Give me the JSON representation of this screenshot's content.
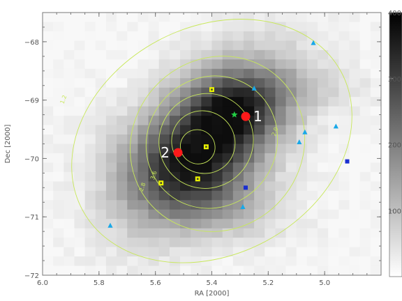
{
  "chart_data": {
    "type": "heatmap",
    "title": "",
    "xlabel": "RA [2000]",
    "ylabel": "Dec [2000]",
    "xlim": [
      6.0,
      4.8
    ],
    "ylim": [
      -72.0,
      -67.5
    ],
    "x_ticks": [
      {
        "value": 6.0,
        "label": "6.0"
      },
      {
        "value": 5.8,
        "label": "5.8"
      },
      {
        "value": 5.6,
        "label": "5.6"
      },
      {
        "value": 5.4,
        "label": "5.4"
      },
      {
        "value": 5.2,
        "label": "5.2"
      },
      {
        "value": 5.0,
        "label": "5.0"
      }
    ],
    "y_ticks": [
      {
        "value": -68,
        "label": "−68"
      },
      {
        "value": -69,
        "label": "−69"
      },
      {
        "value": -70,
        "label": "−70"
      },
      {
        "value": -71,
        "label": "−71"
      },
      {
        "value": -72,
        "label": "−72"
      }
    ],
    "colorbar": {
      "min": 0,
      "max": 400,
      "ticks": [
        {
          "value": 100,
          "label": "100"
        },
        {
          "value": 200,
          "label": "200"
        },
        {
          "value": 300,
          "label": "300"
        },
        {
          "value": 400,
          "label": "400"
        }
      ],
      "colors": {
        "low": "#ffffff",
        "high": "#000000"
      }
    },
    "heatmap_grid": {
      "rows": 28,
      "cols": 32
    },
    "contours": [
      {
        "level": 1.2,
        "label": "1.2",
        "cx": 5.4,
        "cy": -69.7,
        "rx": 0.52,
        "ry": 1.95,
        "rot": -28,
        "label_at": [
          5.92,
          -69.0
        ]
      },
      {
        "level": 2.0,
        "label": "2.0",
        "cx": 5.38,
        "cy": -69.75,
        "rx": 0.32,
        "ry": 1.45,
        "rot": -48,
        "label_at": [
          5.17,
          -69.55
        ]
      },
      {
        "level": 2.8,
        "label": "2.8",
        "cx": 5.4,
        "cy": -69.72,
        "rx": 0.24,
        "ry": 1.1,
        "rot": -50,
        "label_at": [
          5.64,
          -70.5
        ]
      },
      {
        "level": 3.6,
        "label": "3.6",
        "cx": 5.42,
        "cy": -69.7,
        "rx": 0.17,
        "ry": 0.8,
        "rot": -52,
        "label_at": [
          5.6,
          -70.3
        ]
      },
      {
        "level": 4.4,
        "label": "",
        "cx": 5.43,
        "cy": -69.72,
        "rx": 0.11,
        "ry": 0.55,
        "rot": -53,
        "label_at": null
      },
      {
        "level": 5.2,
        "label": "",
        "cx": 5.45,
        "cy": -69.8,
        "rx": 0.06,
        "ry": 0.3,
        "rot": -53,
        "label_at": null
      }
    ],
    "contour_color": "#c8e85a",
    "sources": [
      {
        "label": "1",
        "ra": 5.28,
        "dec": -69.28
      },
      {
        "label": "2",
        "ra": 5.52,
        "dec": -69.9
      }
    ],
    "source_color": "#ff1a1a",
    "star": {
      "ra": 5.32,
      "dec": -69.25,
      "color": "#22cc44"
    },
    "yellow_squares": [
      {
        "ra": 5.4,
        "dec": -68.82
      },
      {
        "ra": 5.42,
        "dec": -69.8
      },
      {
        "ra": 5.45,
        "dec": -70.35
      },
      {
        "ra": 5.58,
        "dec": -70.42
      }
    ],
    "blue_triangles": [
      {
        "ra": 5.04,
        "dec": -68.02
      },
      {
        "ra": 5.25,
        "dec": -68.8
      },
      {
        "ra": 5.07,
        "dec": -69.55
      },
      {
        "ra": 5.09,
        "dec": -69.72
      },
      {
        "ra": 4.96,
        "dec": -69.45
      },
      {
        "ra": 5.29,
        "dec": -70.83
      },
      {
        "ra": 5.76,
        "dec": -71.15
      }
    ],
    "blue_squares": [
      {
        "ra": 5.28,
        "dec": -70.5
      },
      {
        "ra": 4.92,
        "dec": -70.05
      }
    ],
    "marker_colors": {
      "yellow": "#e8f000",
      "cyan": "#19a8e8",
      "blue": "#1a2fd0"
    }
  }
}
